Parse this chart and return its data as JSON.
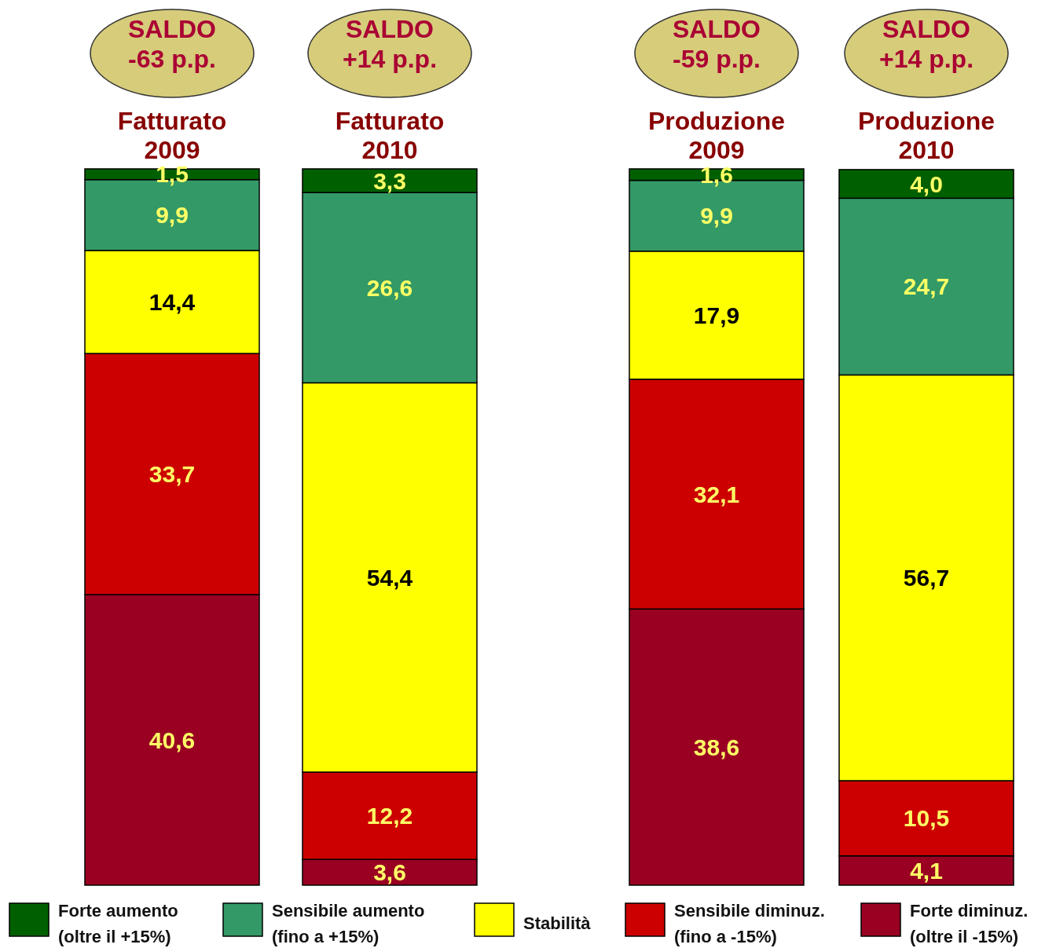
{
  "chart_data": {
    "type": "bar",
    "stacked": true,
    "legend": "bottom",
    "categories": [
      "Fatturato 2009",
      "Fatturato 2010",
      "Produzione 2009",
      "Produzione 2010"
    ],
    "series": [
      {
        "name": "Forte diminuz.\n(oltre il -15%)",
        "color": "#990022",
        "values": [
          40.6,
          3.6,
          38.6,
          4.1
        ],
        "value_labels": [
          "40,6",
          "3,6",
          "38,6",
          "4,1"
        ]
      },
      {
        "name": "Sensibile diminuz.\n(fino a -15%)",
        "color": "#cc0000",
        "values": [
          33.7,
          12.2,
          32.1,
          10.5
        ],
        "value_labels": [
          "33,7",
          "12,2",
          "32,1",
          "10,5"
        ]
      },
      {
        "name": "Stabilità",
        "color": "#ffff00",
        "values": [
          14.4,
          54.4,
          17.9,
          56.7
        ],
        "value_labels": [
          "14,4",
          "54,4",
          "17,9",
          "56,7"
        ]
      },
      {
        "name": "Sensibile aumento\n(fino a +15%)",
        "color": "#339966",
        "values": [
          9.9,
          26.6,
          9.9,
          24.7
        ],
        "value_labels": [
          "9,9",
          "26,6",
          "9,9",
          "24,7"
        ]
      },
      {
        "name": "Forte aumento\n(oltre il +15%)",
        "color": "#006000",
        "values": [
          1.5,
          3.3,
          1.6,
          4.0
        ],
        "value_labels": [
          "1,5",
          "3,3",
          "1,6",
          "4,0"
        ]
      }
    ],
    "annotations": [
      "SALDO\n-63 p.p.",
      "SALDO\n+14 p.p.",
      "SALDO\n-59 p.p.",
      "SALDO\n+14 p.p."
    ]
  }
}
